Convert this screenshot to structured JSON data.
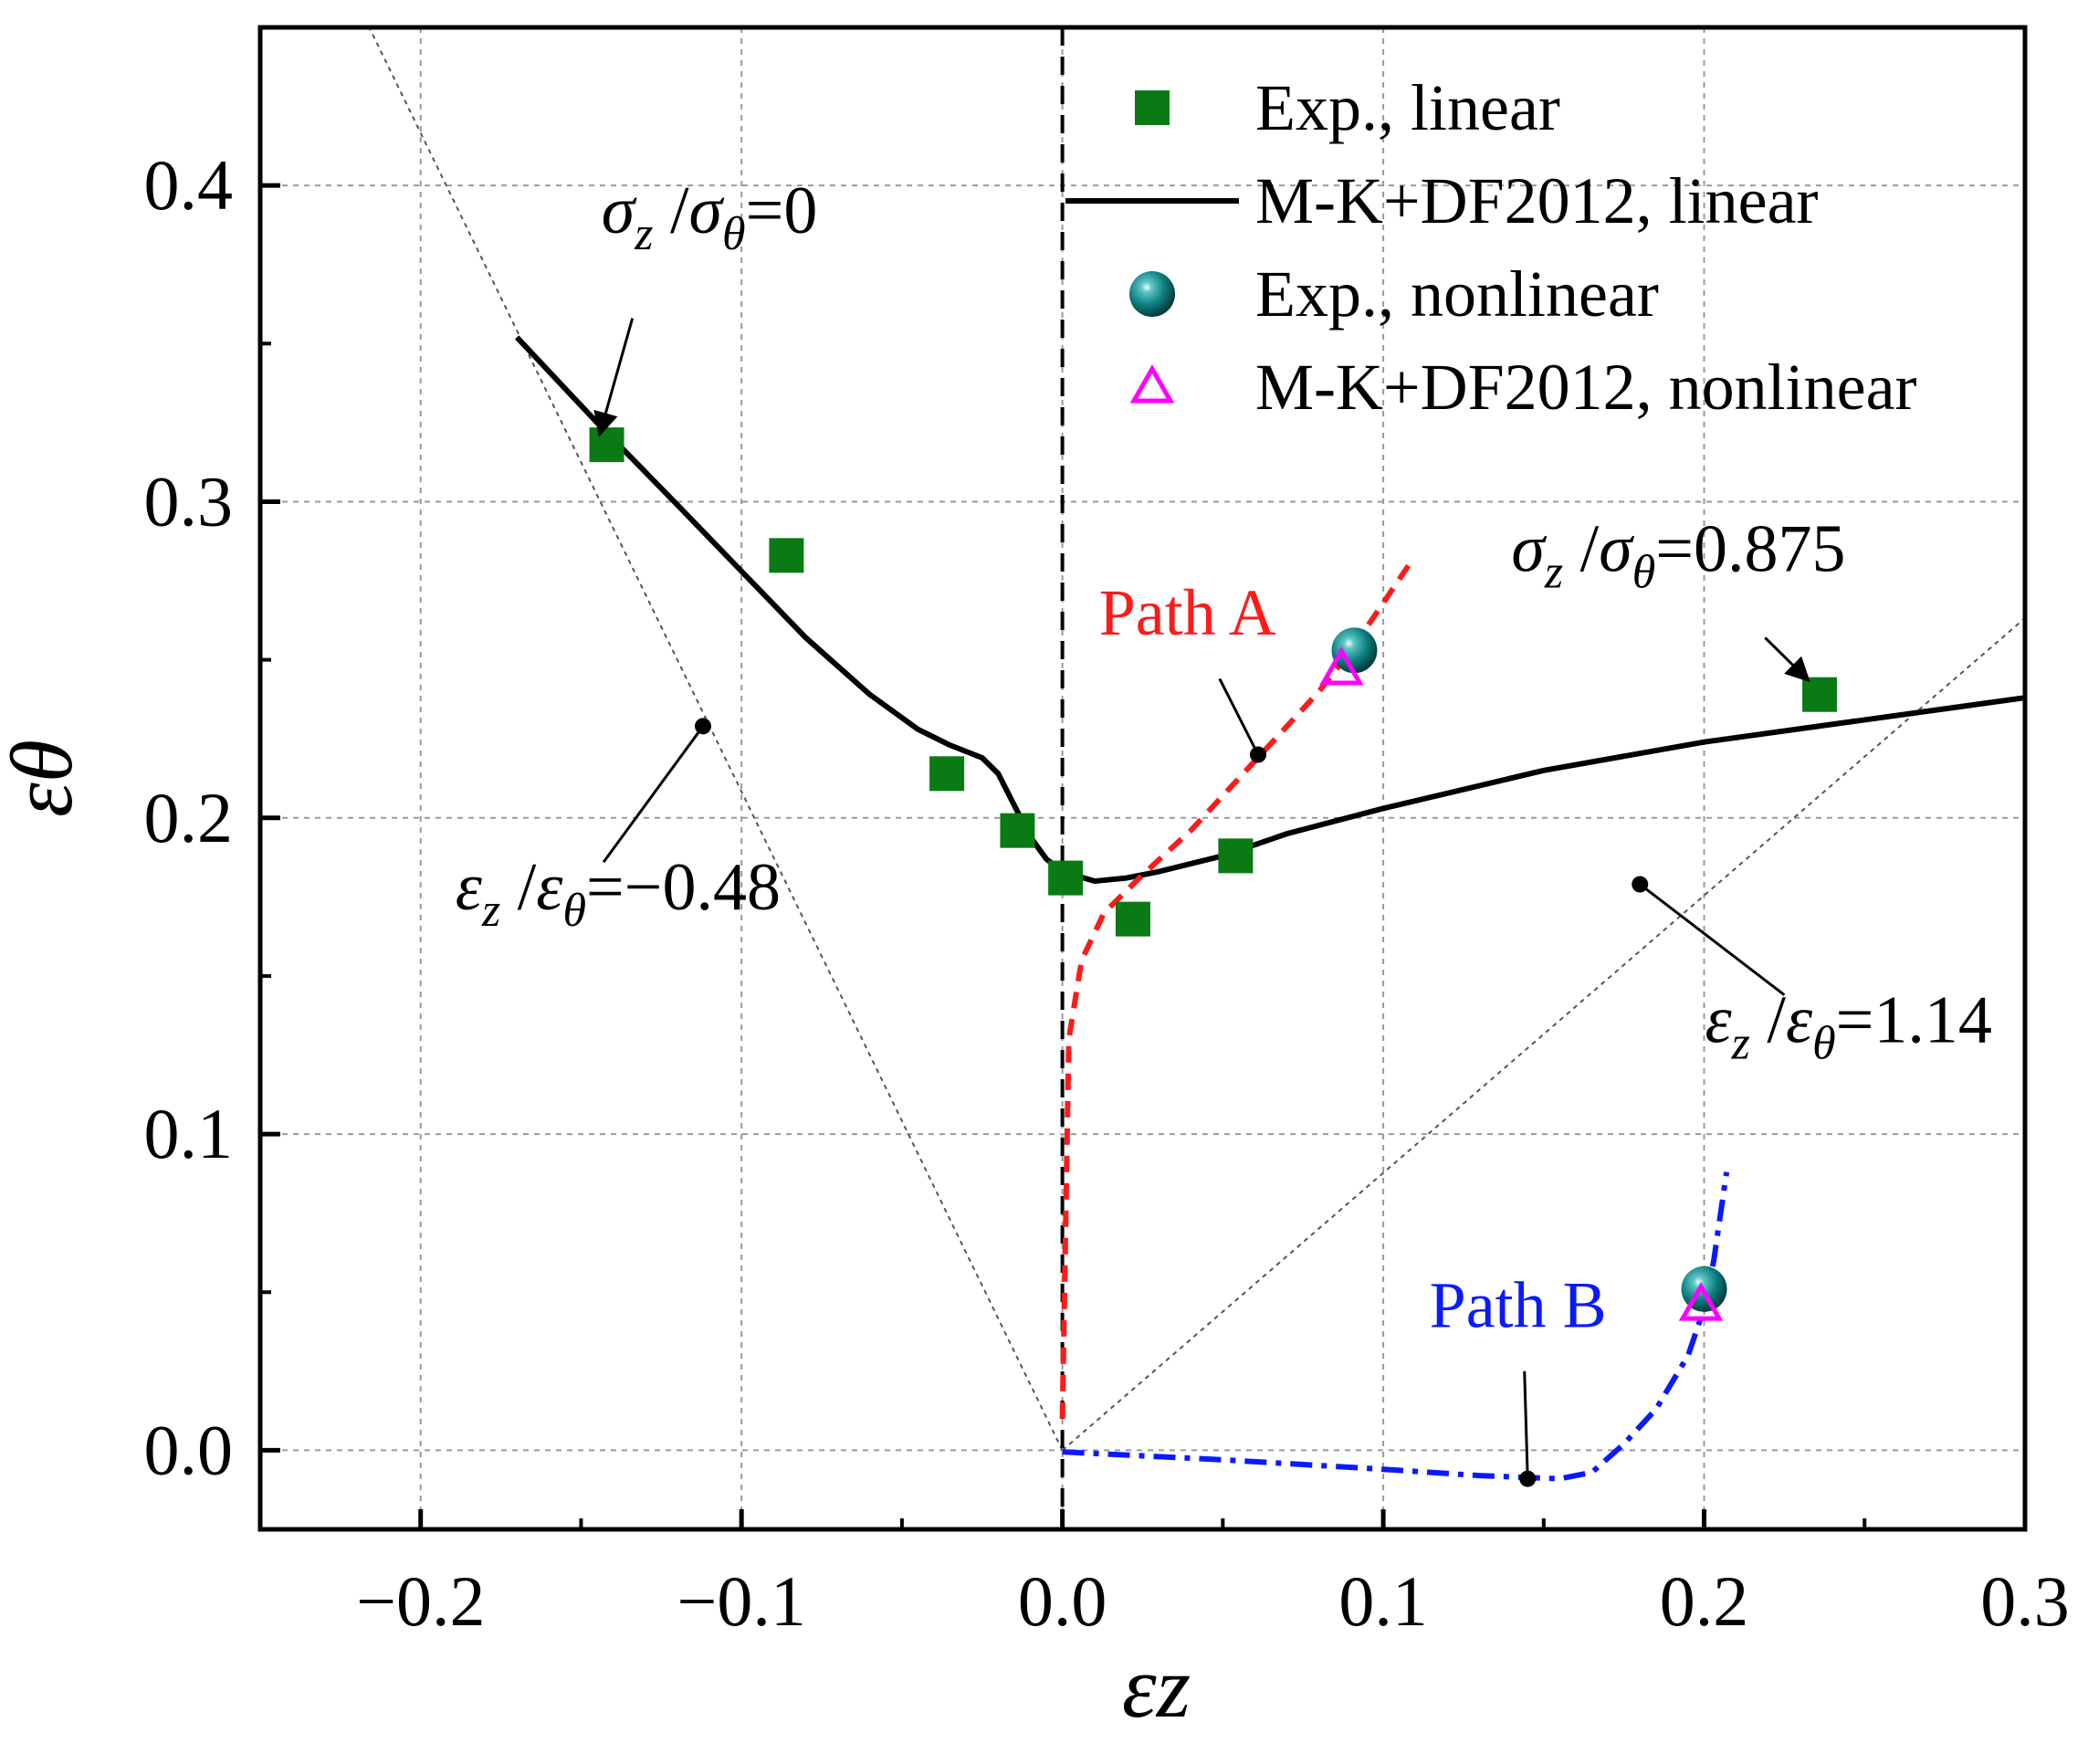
{
  "chart_data": {
    "type": "scatter",
    "xlabel": "εz",
    "ylabel": "εθ",
    "xlim": [
      -0.25,
      0.3
    ],
    "ylim": [
      -0.025,
      0.45
    ],
    "grid": true,
    "legend_position": "top-right",
    "x_ticks": [
      {
        "value": -0.2,
        "label": "−0.2"
      },
      {
        "value": -0.1,
        "label": "−0.1"
      },
      {
        "value": 0.0,
        "label": "0.0"
      },
      {
        "value": 0.1,
        "label": "0.1"
      },
      {
        "value": 0.2,
        "label": "0.2"
      },
      {
        "value": 0.3,
        "label": "0.3"
      }
    ],
    "y_ticks": [
      {
        "value": 0.0,
        "label": "0.0"
      },
      {
        "value": 0.1,
        "label": "0.1"
      },
      {
        "value": 0.2,
        "label": "0.2"
      },
      {
        "value": 0.3,
        "label": "0.3"
      },
      {
        "value": 0.4,
        "label": "0.4"
      }
    ],
    "series": [
      {
        "name": "Exp., linear",
        "kind": "square",
        "color": "#0a7a14",
        "points": [
          [
            -0.142,
            0.318
          ],
          [
            -0.086,
            0.283
          ],
          [
            -0.036,
            0.214
          ],
          [
            -0.014,
            0.196
          ],
          [
            0.001,
            0.181
          ],
          [
            0.022,
            0.168
          ],
          [
            0.054,
            0.188
          ],
          [
            0.236,
            0.239
          ]
        ]
      },
      {
        "name": "M-K+DF2012, linear",
        "kind": "line",
        "color": "#000000",
        "points": [
          [
            -0.17,
            0.352
          ],
          [
            -0.145,
            0.325
          ],
          [
            -0.12,
            0.299
          ],
          [
            -0.1,
            0.278
          ],
          [
            -0.08,
            0.257
          ],
          [
            -0.06,
            0.239
          ],
          [
            -0.045,
            0.228
          ],
          [
            -0.035,
            0.223
          ],
          [
            -0.025,
            0.219
          ],
          [
            -0.02,
            0.214
          ],
          [
            -0.015,
            0.204
          ],
          [
            -0.01,
            0.194
          ],
          [
            -0.005,
            0.187
          ],
          [
            0.0,
            0.183
          ],
          [
            0.01,
            0.18
          ],
          [
            0.02,
            0.181
          ],
          [
            0.03,
            0.183
          ],
          [
            0.05,
            0.188
          ],
          [
            0.07,
            0.195
          ],
          [
            0.1,
            0.203
          ],
          [
            0.15,
            0.215
          ],
          [
            0.2,
            0.224
          ],
          [
            0.25,
            0.231
          ],
          [
            0.3,
            0.238
          ]
        ]
      },
      {
        "name": "Exp., nonlinear",
        "kind": "sphere",
        "color": "#0f8080",
        "points": [
          [
            0.091,
            0.253
          ],
          [
            0.2,
            0.051
          ]
        ]
      },
      {
        "name": "M-K+DF2012, nonlinear",
        "kind": "triangle",
        "color": "#ff00ff",
        "points": [
          [
            0.087,
            0.247
          ],
          [
            0.199,
            0.046
          ]
        ]
      },
      {
        "name": "Path A",
        "kind": "dashed-line",
        "color": "#ff1a1a",
        "points": [
          [
            0.0,
            0.01
          ],
          [
            0.001,
            0.07
          ],
          [
            0.002,
            0.13
          ],
          [
            0.006,
            0.155
          ],
          [
            0.013,
            0.17
          ],
          [
            0.025,
            0.182
          ],
          [
            0.04,
            0.196
          ],
          [
            0.06,
            0.218
          ],
          [
            0.08,
            0.24
          ],
          [
            0.09,
            0.253
          ],
          [
            0.1,
            0.268
          ],
          [
            0.108,
            0.28
          ]
        ]
      },
      {
        "name": "Path B",
        "kind": "dashdot-line",
        "color": "#0a1aff",
        "points": [
          [
            0.0,
            -0.0005
          ],
          [
            0.05,
            -0.003
          ],
          [
            0.1,
            -0.006
          ],
          [
            0.13,
            -0.008
          ],
          [
            0.155,
            -0.009
          ],
          [
            0.165,
            -0.007
          ],
          [
            0.175,
            0.002
          ],
          [
            0.185,
            0.013
          ],
          [
            0.195,
            0.03
          ],
          [
            0.2,
            0.045
          ],
          [
            0.203,
            0.06
          ],
          [
            0.207,
            0.088
          ]
        ]
      },
      {
        "name": "εz/εθ=−0.48 reference",
        "kind": "thin-dotted-line",
        "color": "#555555",
        "points": [
          [
            0.0,
            0.0
          ],
          [
            -0.2165,
            0.451
          ]
        ]
      },
      {
        "name": "εz/εθ=1.14 reference",
        "kind": "thin-dotted-line",
        "color": "#555555",
        "points": [
          [
            0.0,
            0.0
          ],
          [
            0.3,
            0.2632
          ]
        ]
      },
      {
        "name": "εz = 0 line",
        "kind": "vertical-dashed",
        "color": "#000000",
        "points": [
          [
            0.0,
            -0.025
          ],
          [
            0.0,
            0.45
          ]
        ]
      }
    ],
    "annotations": [
      {
        "id": "sigma0",
        "sym": "σ",
        "sub": "z",
        "sym2": "σ",
        "sub2": "θ",
        "value": "=0",
        "color": "#000000",
        "text_at": [
          -0.11,
          0.385
        ],
        "arrow_from": [
          -0.134,
          0.358
        ],
        "arrow_to": [
          -0.144,
          0.322
        ],
        "dot": false
      },
      {
        "id": "sigma0875",
        "sym": "σ",
        "sub": "z",
        "sym2": "σ",
        "sub2": "θ",
        "value": "=0.875",
        "color": "#000000",
        "text_at": [
          0.192,
          0.278
        ],
        "arrow_from": [
          0.219,
          0.257
        ],
        "arrow_to": [
          0.232,
          0.244
        ],
        "dot": false
      },
      {
        "id": "eps048",
        "sym": "ε",
        "sub": "z",
        "sym2": "ε",
        "sub2": "θ",
        "value": "=−0.48",
        "color": "#000000",
        "text_at": [
          -0.1385,
          0.171
        ],
        "arrow_from": [
          -0.143,
          0.186
        ],
        "arrow_to": [
          -0.112,
          0.229
        ],
        "dot": true
      },
      {
        "id": "eps114",
        "sym": "ε",
        "sub": "z",
        "sym2": "ε",
        "sub2": "θ",
        "value": "=1.14",
        "color": "#000000",
        "text_at": [
          0.245,
          0.129
        ],
        "arrow_from": [
          0.225,
          0.144
        ],
        "arrow_to": [
          0.18,
          0.179
        ],
        "dot": true
      },
      {
        "id": "pathA",
        "text": "Path A",
        "color": "#ff1a1a",
        "text_at": [
          0.039,
          0.258
        ],
        "arrow_from": [
          0.049,
          0.244
        ],
        "arrow_to": [
          0.061,
          0.22
        ],
        "dot": true
      },
      {
        "id": "pathB",
        "text": "Path B",
        "color": "#0a1aff",
        "text_at": [
          0.142,
          0.039
        ],
        "arrow_from": [
          0.144,
          0.025
        ],
        "arrow_to": [
          0.145,
          -0.009
        ],
        "dot": true
      }
    ]
  }
}
